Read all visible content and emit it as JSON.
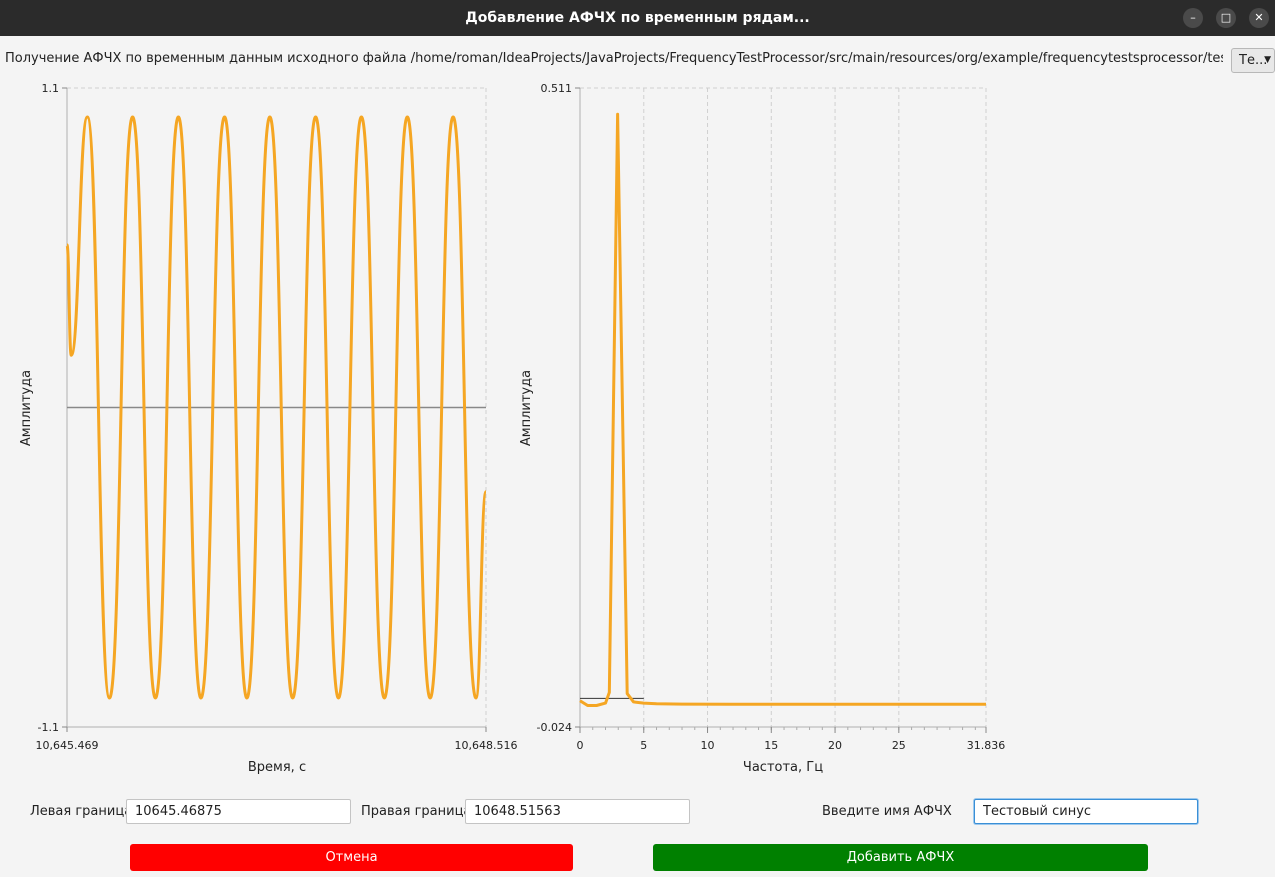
{
  "window": {
    "title": "Добавление АФЧХ по временным рядам...",
    "controls": [
      "minimize-icon",
      "maximize-icon",
      "close-icon"
    ]
  },
  "header": {
    "source_text": "Получение АФЧХ по временным данным исходного файла /home/roman/IdeaProjects/JavaProjects/FrequencyTestProcessor/src/main/resources/org/example/frequencytestsprocessor/testDataS...",
    "combo_value": "Те...",
    "combo_icon": "chevron-down-icon"
  },
  "chart_data": [
    {
      "type": "line",
      "ylabel": "Амплитуда",
      "xlabel": "Время, с",
      "ylim": [
        -1.1,
        1.1
      ],
      "y_tick_labels": [
        "1.1",
        "-1.1"
      ],
      "x_tick_labels": [
        "10,645.469",
        "10,648.516"
      ],
      "xlim": [
        10645.469,
        10648.516
      ],
      "grid": true,
      "series_color": "#f5a623",
      "series": [
        {
          "x": [
            10645.469,
            10645.5,
            10645.617,
            10645.778,
            10645.946,
            10646.112,
            10646.279,
            10646.443,
            10646.615,
            10646.777,
            10646.944,
            10647.11,
            10647.277,
            10647.443,
            10647.61,
            10647.777,
            10647.944,
            10648.11,
            10648.277,
            10648.443,
            10648.516
          ],
          "y": [
            0.56,
            0.18,
            1.0,
            -1.0,
            1.0,
            -1.0,
            1.0,
            -1.0,
            1.0,
            -1.0,
            1.0,
            -1.0,
            1.0,
            -1.0,
            1.0,
            -1.0,
            1.0,
            -1.0,
            1.0,
            -1.0,
            -0.29
          ]
        }
      ]
    },
    {
      "type": "line",
      "ylabel": "Амплитуда",
      "xlabel": "Частота, Гц",
      "ylim": [
        -0.024,
        0.511
      ],
      "y_tick_labels": [
        "0.511",
        "-0.024"
      ],
      "xlim": [
        0,
        31.836
      ],
      "x_tick_labels": [
        "0",
        "5",
        "10",
        "15",
        "20",
        "25",
        "31.836"
      ],
      "x_tick_values": [
        0,
        5,
        10,
        15,
        20,
        25,
        31.836
      ],
      "grid": true,
      "series_color": "#f5a623",
      "series": [
        {
          "x": [
            0,
            0.6,
            1.3,
            2.0,
            2.3,
            2.95,
            3.7,
            4.2,
            5,
            6,
            8,
            12,
            20,
            31.836
          ],
          "y": [
            -0.002,
            -0.006,
            -0.006,
            -0.004,
            0.005,
            0.489,
            0.004,
            -0.003,
            -0.004,
            -0.0045,
            -0.0048,
            -0.005,
            -0.005,
            -0.005
          ]
        }
      ]
    }
  ],
  "form": {
    "left_label": "Левая граница",
    "left_value": "10645.46875",
    "right_label": "Правая граница",
    "right_value": "10648.51563",
    "name_label": "Введите имя АФЧХ",
    "name_value": "Тестовый синус"
  },
  "buttons": {
    "cancel": "Отмена",
    "add": "Добавить АФЧХ",
    "cancel_color": "#ff0000",
    "add_color": "#008000"
  }
}
